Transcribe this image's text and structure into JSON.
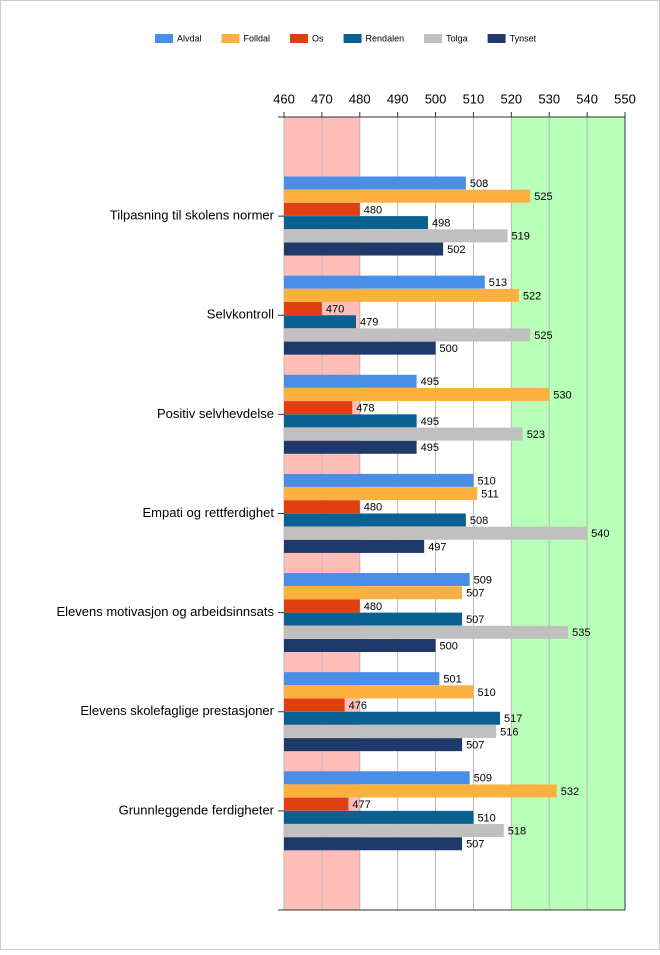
{
  "chart_data": {
    "type": "hbar",
    "categories": [
      "Tilpasning til skolens normer",
      "Selvkontroll",
      "Positiv selvhevdelse",
      "Empati og rettferdighet",
      "Elevens motivasjon og arbeidsinnsats",
      "Elevens skolefaglige prestasjoner",
      "Grunnleggende ferdigheter"
    ],
    "series": [
      {
        "name": "Alvdal",
        "color": "#4a8ee8",
        "values": [
          508,
          513,
          495,
          510,
          509,
          501,
          509
        ]
      },
      {
        "name": "Folldal",
        "color": "#fbb040",
        "values": [
          525,
          522,
          530,
          511,
          507,
          510,
          532
        ]
      },
      {
        "name": "Os",
        "color": "#e04010",
        "values": [
          480,
          470,
          478,
          480,
          480,
          476,
          477
        ]
      },
      {
        "name": "Rendalen",
        "color": "#0a6090",
        "values": [
          498,
          479,
          495,
          508,
          507,
          517,
          510
        ]
      },
      {
        "name": "Tolga",
        "color": "#c0c0c0",
        "values": [
          519,
          525,
          523,
          540,
          535,
          516,
          518
        ]
      },
      {
        "name": "Tynset",
        "color": "#1f3a6a",
        "values": [
          502,
          500,
          495,
          497,
          500,
          507,
          507
        ]
      }
    ],
    "xlim": [
      460,
      550
    ],
    "xticks": [
      460,
      470,
      480,
      490,
      500,
      510,
      520,
      530,
      540,
      550
    ],
    "bands": [
      {
        "from": 460,
        "to": 480,
        "color": "#ffbfb8"
      },
      {
        "from": 520,
        "to": 550,
        "color": "#b8ffb8"
      }
    ],
    "grid": true,
    "legend": "top"
  }
}
